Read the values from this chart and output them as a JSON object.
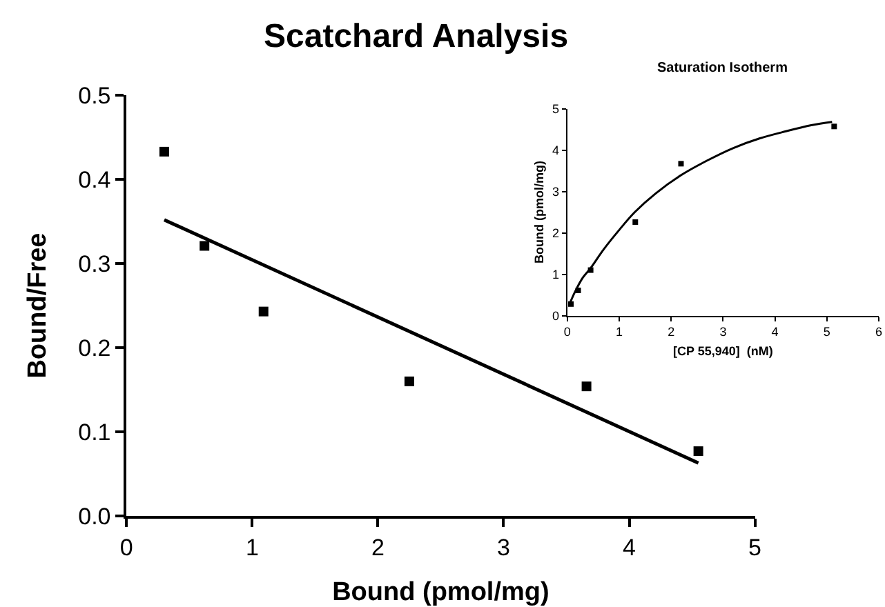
{
  "chart_data": [
    {
      "type": "scatter",
      "title": "Scatchard Analysis",
      "xlabel": "Bound (pmol/mg)",
      "ylabel": "Bound/Free",
      "xlim": [
        0,
        5
      ],
      "ylim": [
        0,
        0.5
      ],
      "xticks": [
        0,
        1,
        2,
        3,
        4,
        5
      ],
      "yticks": [
        {
          "value": 0,
          "label": "0.0"
        },
        0.1,
        0.2,
        0.3,
        0.4,
        0.5
      ],
      "series": [
        {
          "marker": "square",
          "color": "#000000",
          "x": [
            0.3,
            0.62,
            1.09,
            2.25,
            3.66,
            4.55
          ],
          "values": [
            0.433,
            0.321,
            0.243,
            0.16,
            0.154,
            0.077
          ]
        },
        {
          "type": "line",
          "color": "#000000",
          "line_style": "solid",
          "x": [
            0.3,
            4.55
          ],
          "values": [
            0.352,
            0.063
          ]
        }
      ]
    },
    {
      "type": "scatter",
      "title": "Saturation Isotherm",
      "xlabel": "[CP 55,940]  (nM)",
      "ylabel": "Bound (pmol/mg)",
      "xlim": [
        0,
        6
      ],
      "ylim": [
        0,
        5
      ],
      "xticks": [
        0,
        1,
        2,
        3,
        4,
        5,
        6
      ],
      "yticks": [
        0,
        1,
        2,
        3,
        4,
        5
      ],
      "series": [
        {
          "marker": "square",
          "color": "#000000",
          "x": [
            0.07,
            0.21,
            0.45,
            1.31,
            2.19,
            5.14
          ],
          "values": [
            0.28,
            0.61,
            1.1,
            2.26,
            3.67,
            4.57
          ]
        },
        {
          "type": "line",
          "color": "#000000",
          "line_style": "solid",
          "x": [
            0.05,
            0.15,
            0.3,
            0.45,
            0.7,
            1.0,
            1.3,
            1.7,
            2.2,
            2.7,
            3.2,
            3.7,
            4.2,
            4.7,
            5.1
          ],
          "values": [
            0.3,
            0.58,
            0.92,
            1.15,
            1.6,
            2.07,
            2.5,
            2.95,
            3.4,
            3.75,
            4.05,
            4.28,
            4.45,
            4.6,
            4.68
          ]
        }
      ]
    }
  ]
}
